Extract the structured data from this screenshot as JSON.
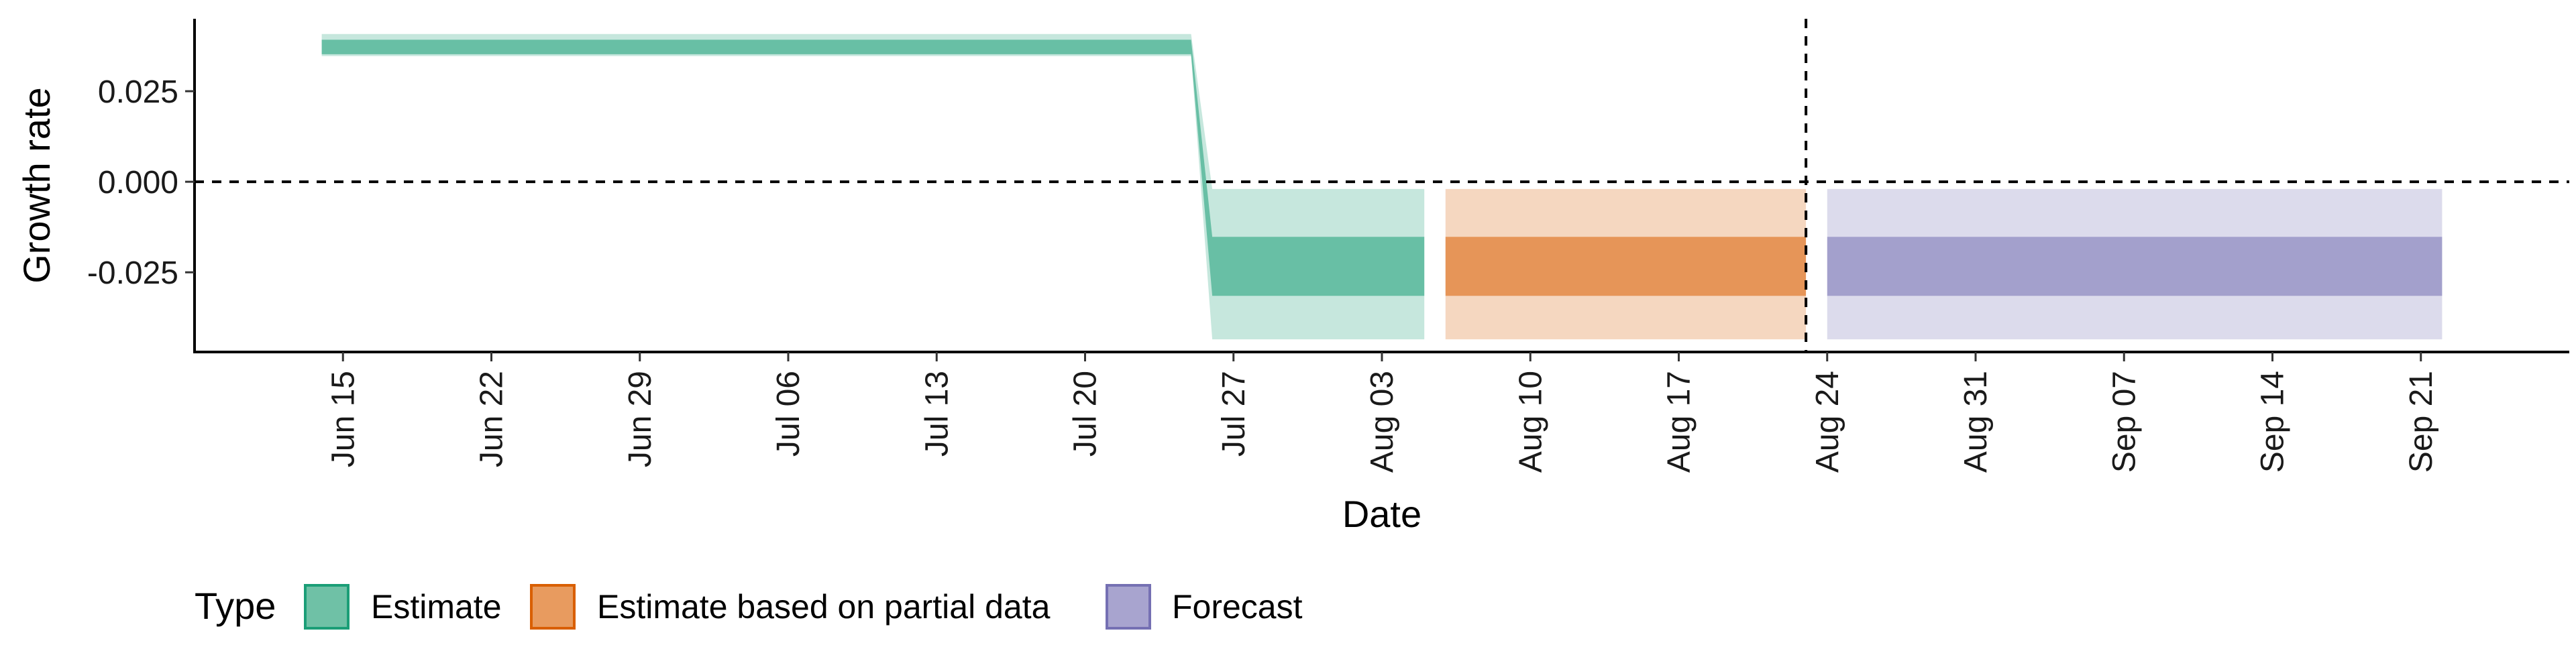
{
  "chart_data": {
    "type": "area",
    "xlabel": "Date",
    "ylabel": "Growth rate",
    "x_ticks": [
      "2020-06-15",
      "2020-06-22",
      "2020-06-29",
      "2020-07-06",
      "2020-07-13",
      "2020-07-20",
      "2020-07-27",
      "2020-08-03",
      "2020-08-10",
      "2020-08-17",
      "2020-08-24",
      "2020-08-31",
      "2020-09-07",
      "2020-09-14",
      "2020-09-21"
    ],
    "x_tick_labels": [
      "Jun 15",
      "Jun 22",
      "Jun 29",
      "Jul 06",
      "Jul 13",
      "Jul 20",
      "Jul 27",
      "Aug 03",
      "Aug 10",
      "Aug 17",
      "Aug 24",
      "Aug 31",
      "Sep 07",
      "Sep 14",
      "Sep 21"
    ],
    "y_ticks": [
      -0.025,
      0.0,
      0.025
    ],
    "y_tick_labels": [
      "-0.025",
      "0.000",
      "0.025"
    ],
    "xlim": [
      "2020-06-08",
      "2020-09-28"
    ],
    "ylim": [
      -0.047,
      0.045
    ],
    "hlines": [
      0.0
    ],
    "vlines": [
      "2020-08-23"
    ],
    "grid": false,
    "legend": {
      "position": "bottom-left",
      "title": "Type",
      "entries": [
        {
          "label": "Estimate",
          "fill": "#6fc1a6",
          "stroke": "#1b9e77"
        },
        {
          "label": "Estimate based on partial data",
          "fill": "#e89b5f",
          "stroke": "#d95f02"
        },
        {
          "label": "Forecast",
          "fill": "#a8a4cf",
          "stroke": "#7570b3"
        }
      ]
    },
    "series": [
      {
        "name": "Estimate",
        "color": "#1b9e77",
        "x": [
          "2020-06-14",
          "2020-07-25",
          "2020-07-26",
          "2020-08-05"
        ],
        "outer_lower": [
          0.0347,
          0.0347,
          -0.0435,
          -0.0435
        ],
        "outer_upper": [
          0.0408,
          0.0408,
          -0.002,
          -0.002
        ],
        "inner_lower": [
          0.0352,
          0.0352,
          -0.0315,
          -0.0315
        ],
        "inner_upper": [
          0.0392,
          0.0392,
          -0.0152,
          -0.0152
        ]
      },
      {
        "name": "Estimate based on partial data",
        "color": "#d95f02",
        "x": [
          "2020-08-06",
          "2020-08-23"
        ],
        "outer_lower": [
          -0.0435,
          -0.0435
        ],
        "outer_upper": [
          -0.002,
          -0.002
        ],
        "inner_lower": [
          -0.0315,
          -0.0315
        ],
        "inner_upper": [
          -0.0152,
          -0.0152
        ]
      },
      {
        "name": "Forecast",
        "color": "#7570b3",
        "x": [
          "2020-08-24",
          "2020-09-22"
        ],
        "outer_lower": [
          -0.0435,
          -0.0435
        ],
        "outer_upper": [
          -0.002,
          -0.002
        ],
        "inner_lower": [
          -0.0315,
          -0.0315
        ],
        "inner_upper": [
          -0.0152,
          -0.0152
        ]
      }
    ]
  }
}
